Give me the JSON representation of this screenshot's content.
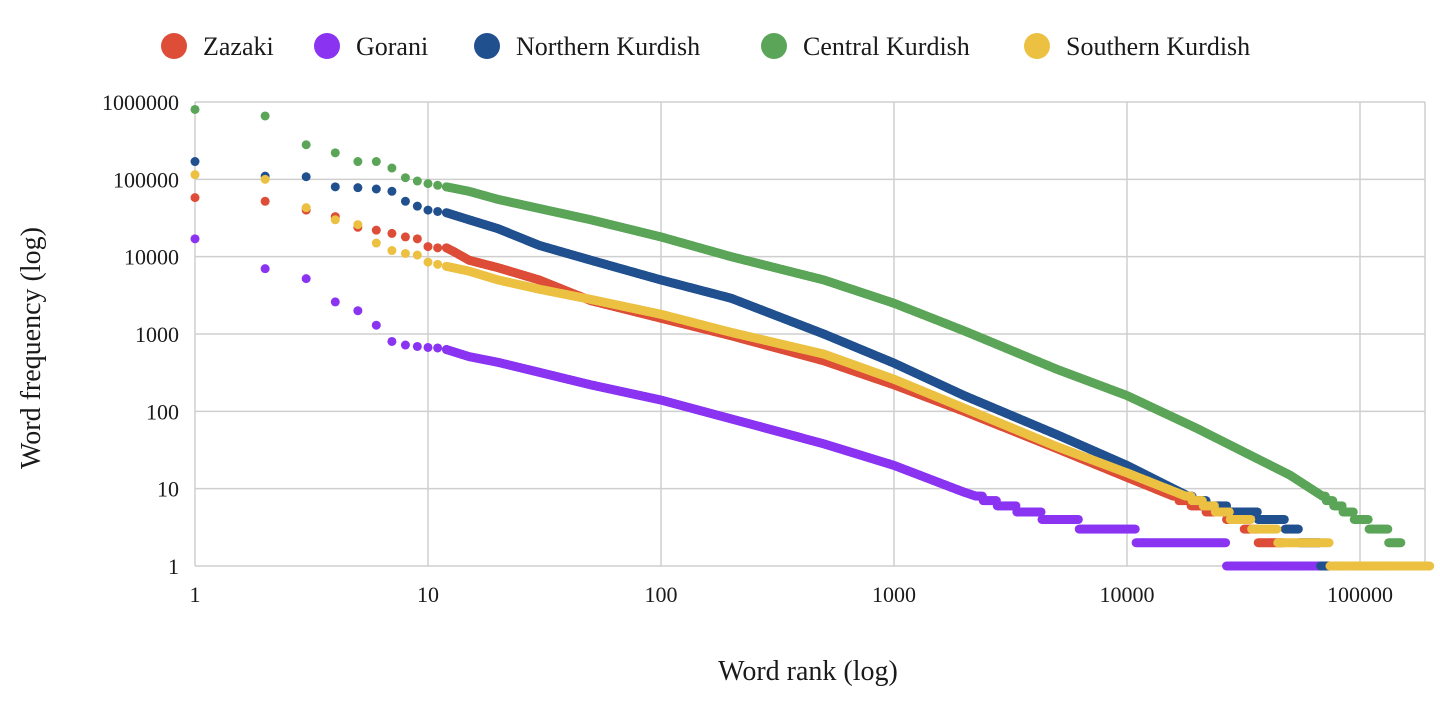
{
  "chart_data": {
    "type": "scatter",
    "xlabel": "Word rank (log)",
    "ylabel": "Word frequency (log)",
    "xscale": "log",
    "yscale": "log",
    "xlim": [
      1,
      200000
    ],
    "ylim": [
      1,
      1000000
    ],
    "grid": true,
    "legend_position": "top",
    "x_ticks": [
      1,
      10,
      100,
      1000,
      10000,
      100000
    ],
    "x_tick_labels": [
      "1",
      "10",
      "100",
      "1000",
      "10000",
      "100000"
    ],
    "y_ticks": [
      1,
      10,
      100,
      1000,
      10000,
      100000,
      1000000
    ],
    "y_tick_labels": [
      "1",
      "10",
      "100",
      "1000",
      "10000",
      "100000",
      "1000000"
    ],
    "series": [
      {
        "name": "Zazaki",
        "color": "#dd4d38",
        "points": [
          [
            1,
            58000
          ],
          [
            2,
            52000
          ],
          [
            3,
            40000
          ],
          [
            4,
            33000
          ],
          [
            5,
            24000
          ],
          [
            6,
            22000
          ],
          [
            7,
            20000
          ],
          [
            8,
            18000
          ],
          [
            9,
            17000
          ],
          [
            10,
            13500
          ],
          [
            11,
            13000
          ],
          [
            12,
            13000
          ],
          [
            13,
            11500
          ],
          [
            15,
            9000
          ],
          [
            20,
            7200
          ],
          [
            30,
            5000
          ],
          [
            50,
            2700
          ],
          [
            100,
            1600
          ],
          [
            200,
            950
          ],
          [
            500,
            450
          ],
          [
            1000,
            220
          ],
          [
            2000,
            100
          ],
          [
            5000,
            33
          ],
          [
            10000,
            14
          ],
          [
            20000,
            6
          ],
          [
            30000,
            4
          ],
          [
            40000,
            2
          ],
          [
            60000,
            1
          ]
        ]
      },
      {
        "name": "Gorani",
        "color": "#8a34f2",
        "points": [
          [
            1,
            17000
          ],
          [
            2,
            7000
          ],
          [
            3,
            5200
          ],
          [
            4,
            2600
          ],
          [
            5,
            2000
          ],
          [
            6,
            1300
          ],
          [
            7,
            800
          ],
          [
            8,
            720
          ],
          [
            9,
            690
          ],
          [
            10,
            670
          ],
          [
            11,
            660
          ],
          [
            12,
            630
          ],
          [
            15,
            510
          ],
          [
            20,
            430
          ],
          [
            30,
            320
          ],
          [
            50,
            220
          ],
          [
            100,
            140
          ],
          [
            200,
            80
          ],
          [
            500,
            38
          ],
          [
            1000,
            20
          ],
          [
            2000,
            9
          ],
          [
            3000,
            6
          ],
          [
            5000,
            4
          ],
          [
            8000,
            3
          ],
          [
            10000,
            3
          ],
          [
            12000,
            2
          ],
          [
            20000,
            2
          ],
          [
            40000,
            1
          ],
          [
            120000,
            1
          ]
        ]
      },
      {
        "name": "Northern Kurdish",
        "color": "#21508f",
        "points": [
          [
            1,
            170000
          ],
          [
            2,
            110000
          ],
          [
            3,
            108000
          ],
          [
            4,
            80000
          ],
          [
            5,
            78000
          ],
          [
            6,
            75000
          ],
          [
            7,
            70000
          ],
          [
            8,
            52000
          ],
          [
            9,
            45000
          ],
          [
            10,
            40000
          ],
          [
            12,
            37000
          ],
          [
            15,
            30000
          ],
          [
            20,
            23000
          ],
          [
            30,
            14000
          ],
          [
            50,
            9000
          ],
          [
            100,
            5000
          ],
          [
            200,
            2900
          ],
          [
            500,
            1000
          ],
          [
            1000,
            420
          ],
          [
            2000,
            160
          ],
          [
            5000,
            50
          ],
          [
            10000,
            20
          ],
          [
            20000,
            7
          ],
          [
            30000,
            5
          ],
          [
            45000,
            4
          ],
          [
            80000,
            1
          ],
          [
            150000,
            1
          ]
        ]
      },
      {
        "name": "Central Kurdish",
        "color": "#5ba558",
        "points": [
          [
            1,
            800000
          ],
          [
            2,
            660000
          ],
          [
            3,
            280000
          ],
          [
            4,
            220000
          ],
          [
            5,
            170000
          ],
          [
            6,
            170000
          ],
          [
            7,
            140000
          ],
          [
            8,
            105000
          ],
          [
            9,
            95000
          ],
          [
            10,
            88000
          ],
          [
            12,
            80000
          ],
          [
            15,
            70000
          ],
          [
            20,
            55000
          ],
          [
            30,
            42000
          ],
          [
            50,
            30000
          ],
          [
            100,
            18000
          ],
          [
            200,
            10000
          ],
          [
            500,
            5000
          ],
          [
            1000,
            2500
          ],
          [
            2000,
            1100
          ],
          [
            5000,
            350
          ],
          [
            10000,
            160
          ],
          [
            20000,
            60
          ],
          [
            50000,
            15
          ],
          [
            80000,
            6
          ],
          [
            100000,
            4
          ],
          [
            120000,
            3
          ],
          [
            150000,
            2
          ]
        ]
      },
      {
        "name": "Southern Kurdish",
        "color": "#ecc142",
        "points": [
          [
            1,
            115000
          ],
          [
            2,
            100000
          ],
          [
            3,
            43000
          ],
          [
            4,
            30000
          ],
          [
            5,
            26000
          ],
          [
            6,
            15000
          ],
          [
            7,
            12000
          ],
          [
            8,
            11000
          ],
          [
            9,
            10500
          ],
          [
            10,
            8500
          ],
          [
            12,
            7500
          ],
          [
            15,
            6500
          ],
          [
            20,
            5000
          ],
          [
            30,
            3800
          ],
          [
            50,
            2800
          ],
          [
            100,
            1800
          ],
          [
            200,
            1050
          ],
          [
            500,
            550
          ],
          [
            1000,
            260
          ],
          [
            2000,
            110
          ],
          [
            5000,
            35
          ],
          [
            10000,
            16
          ],
          [
            20000,
            7
          ],
          [
            30000,
            4
          ],
          [
            40000,
            3
          ],
          [
            50000,
            2
          ],
          [
            70000,
            2
          ],
          [
            80000,
            1
          ],
          [
            200000,
            1
          ]
        ]
      }
    ]
  }
}
